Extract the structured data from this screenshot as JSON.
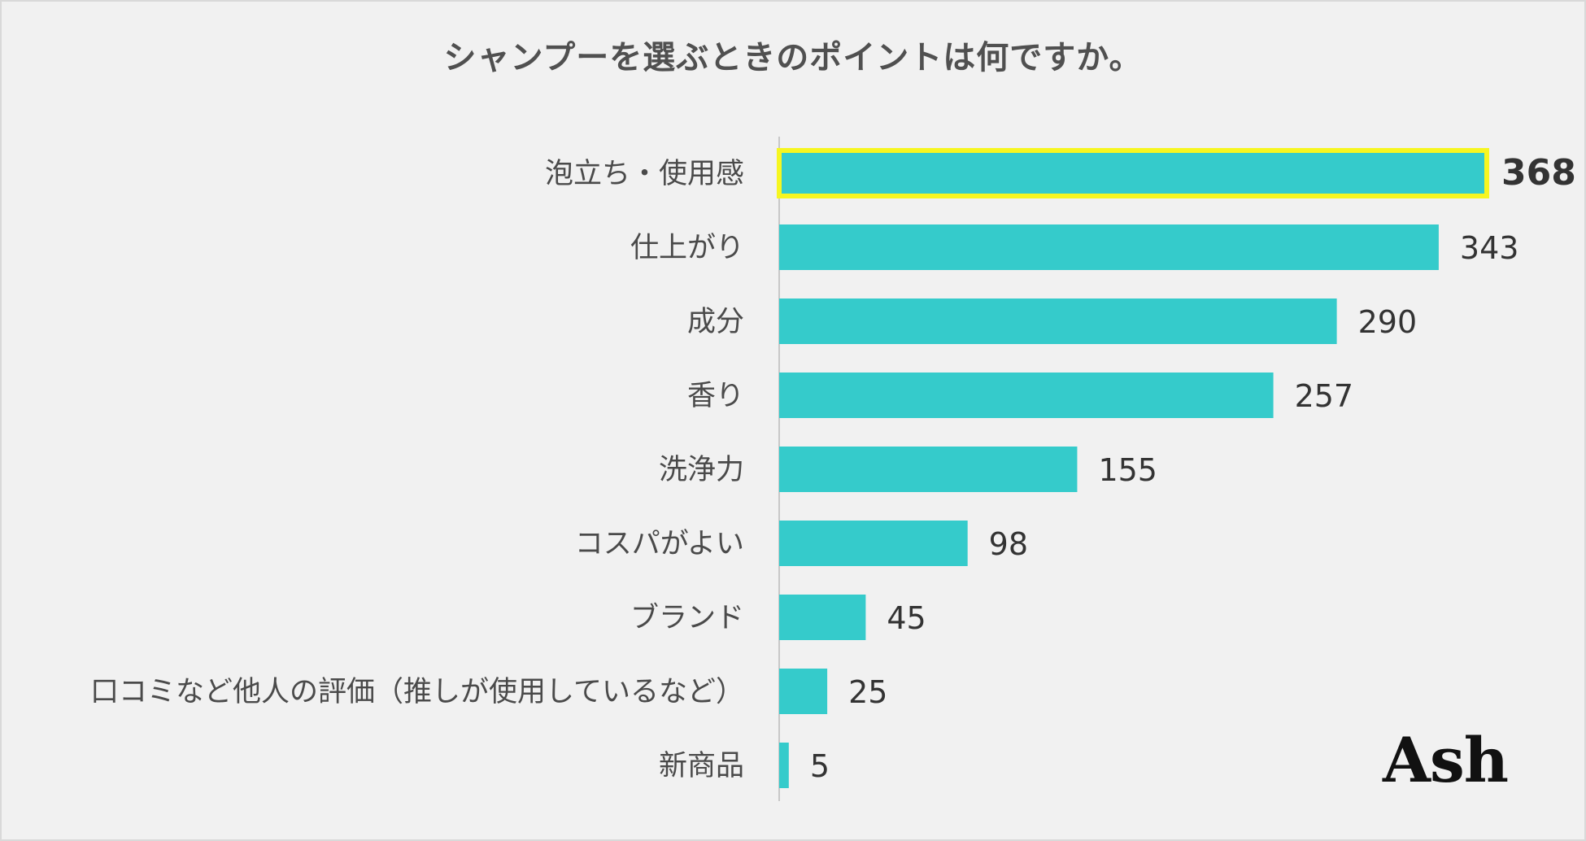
{
  "chart_data": {
    "type": "bar",
    "orientation": "horizontal",
    "title": "シャンプーを選ぶときのポイントは何ですか。",
    "categories": [
      "泡立ち・使用感",
      "仕上がり",
      "成分",
      "香り",
      "洗浄力",
      "コスパがよい",
      "ブランド",
      "口コミなど他人の評価（推しが使用しているなど）",
      "新商品"
    ],
    "values": [
      368,
      343,
      290,
      257,
      155,
      98,
      45,
      25,
      5
    ],
    "highlight_index": 0,
    "xlim": [
      0,
      368
    ],
    "xlabel": "",
    "ylabel": "",
    "grid": false
  },
  "colors": {
    "bar": "#35cbcb",
    "highlight_border": "#f6f620",
    "axis": "#c8c8c8"
  },
  "logo": {
    "text": "Ash"
  }
}
